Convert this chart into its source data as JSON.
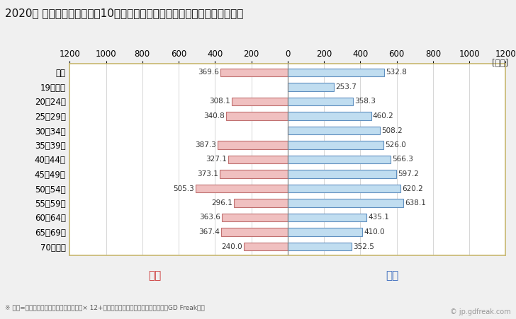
{
  "title": "2020年 民間企業（従業者数10人以上）フルタイム労働者の男女別平均年収",
  "unit_label": "[万円]",
  "categories": [
    "全体",
    "19歳以下",
    "20～24歳",
    "25～29歳",
    "30～34歳",
    "35～39歳",
    "40～44歳",
    "45～49歳",
    "50～54歳",
    "55～59歳",
    "60～64歳",
    "65～69歳",
    "70歳以上"
  ],
  "female_values": [
    369.6,
    0.0,
    308.1,
    340.8,
    0.0,
    387.3,
    327.1,
    373.1,
    505.3,
    296.1,
    363.6,
    367.4,
    240.0
  ],
  "male_values": [
    532.8,
    253.7,
    358.3,
    460.2,
    508.2,
    526.0,
    566.3,
    597.2,
    620.2,
    638.1,
    435.1,
    410.0,
    352.5
  ],
  "female_color": "#f0c0c0",
  "male_color": "#c0ddf0",
  "female_edge_color": "#c07070",
  "male_edge_color": "#6090c0",
  "female_label": "女性",
  "male_label": "男性",
  "female_label_color": "#cc3333",
  "male_label_color": "#3366bb",
  "xlim": 1200,
  "background_color": "#f0f0f0",
  "plot_bg_color": "#ffffff",
  "plot_border_color": "#c8b870",
  "grid_color": "#d0d0d0",
  "center_line_color": "#888888",
  "bar_height": 0.55,
  "footnote": "※ 年収=「きまって支給する現金給与額」× 12+「年間賞与その他特別給与額」としてGD Freak推計",
  "watermark": "© jp.gdfreak.com",
  "title_fontsize": 11,
  "tick_fontsize": 8.5,
  "category_fontsize": 8.5,
  "value_fontsize": 7.5,
  "legend_fontsize": 11,
  "footnote_fontsize": 6.5,
  "watermark_fontsize": 7
}
